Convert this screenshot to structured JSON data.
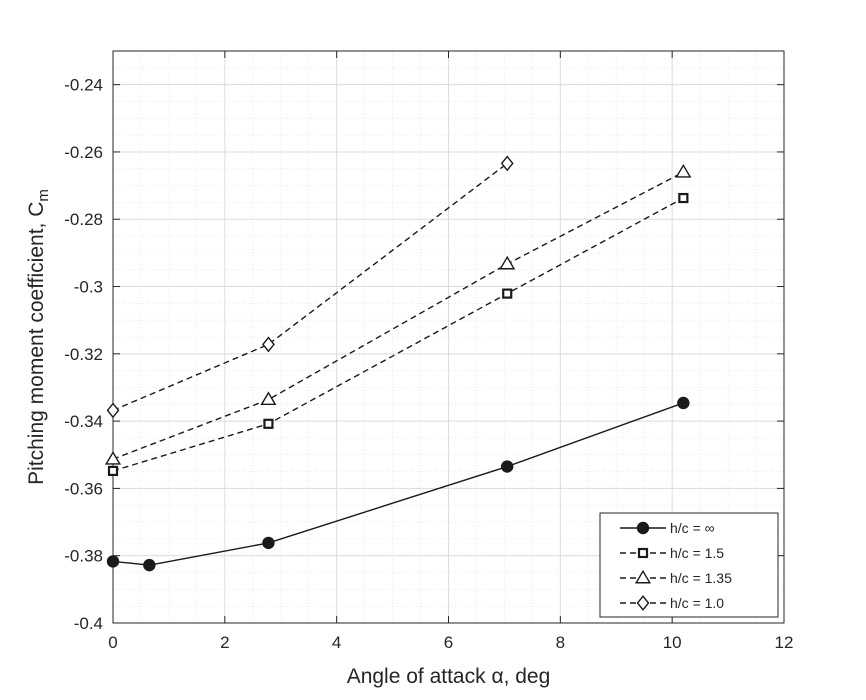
{
  "chart_data": {
    "type": "line",
    "title": "",
    "xlabel": "Angle of attack α, deg",
    "ylabel": "Pitching moment coefficient, C",
    "ylabel_subscript": "m",
    "xlim": [
      0,
      12
    ],
    "ylim": [
      -0.4,
      -0.23
    ],
    "xticks": [
      0,
      2,
      4,
      6,
      8,
      10,
      12
    ],
    "yticks": [
      -0.4,
      -0.38,
      -0.36,
      -0.34,
      -0.32,
      -0.3,
      -0.28,
      -0.26,
      -0.24
    ],
    "grid": true,
    "legend_position": "bottom-right",
    "series": [
      {
        "name": "h/c = ∞",
        "marker": "circle-filled",
        "line": "solid",
        "x": [
          0,
          0.65,
          2.78,
          7.05,
          10.2
        ],
        "y": [
          -0.3817,
          -0.3828,
          -0.3762,
          -0.3535,
          -0.3346
        ]
      },
      {
        "name": "h/c = 1.5",
        "marker": "square",
        "line": "dashed",
        "x": [
          0,
          2.78,
          7.05,
          10.2
        ],
        "y": [
          -0.3548,
          -0.3408,
          -0.3021,
          -0.2737
        ]
      },
      {
        "name": "h/c = 1.35",
        "marker": "triangle",
        "line": "dashed",
        "x": [
          0,
          2.78,
          7.05,
          10.2
        ],
        "y": [
          -0.3513,
          -0.3336,
          -0.2933,
          -0.266
        ]
      },
      {
        "name": "h/c = 1.0",
        "marker": "diamond",
        "line": "dashed",
        "x": [
          0,
          2.78,
          7.05
        ],
        "y": [
          -0.3368,
          -0.3172,
          -0.2634
        ]
      }
    ]
  }
}
